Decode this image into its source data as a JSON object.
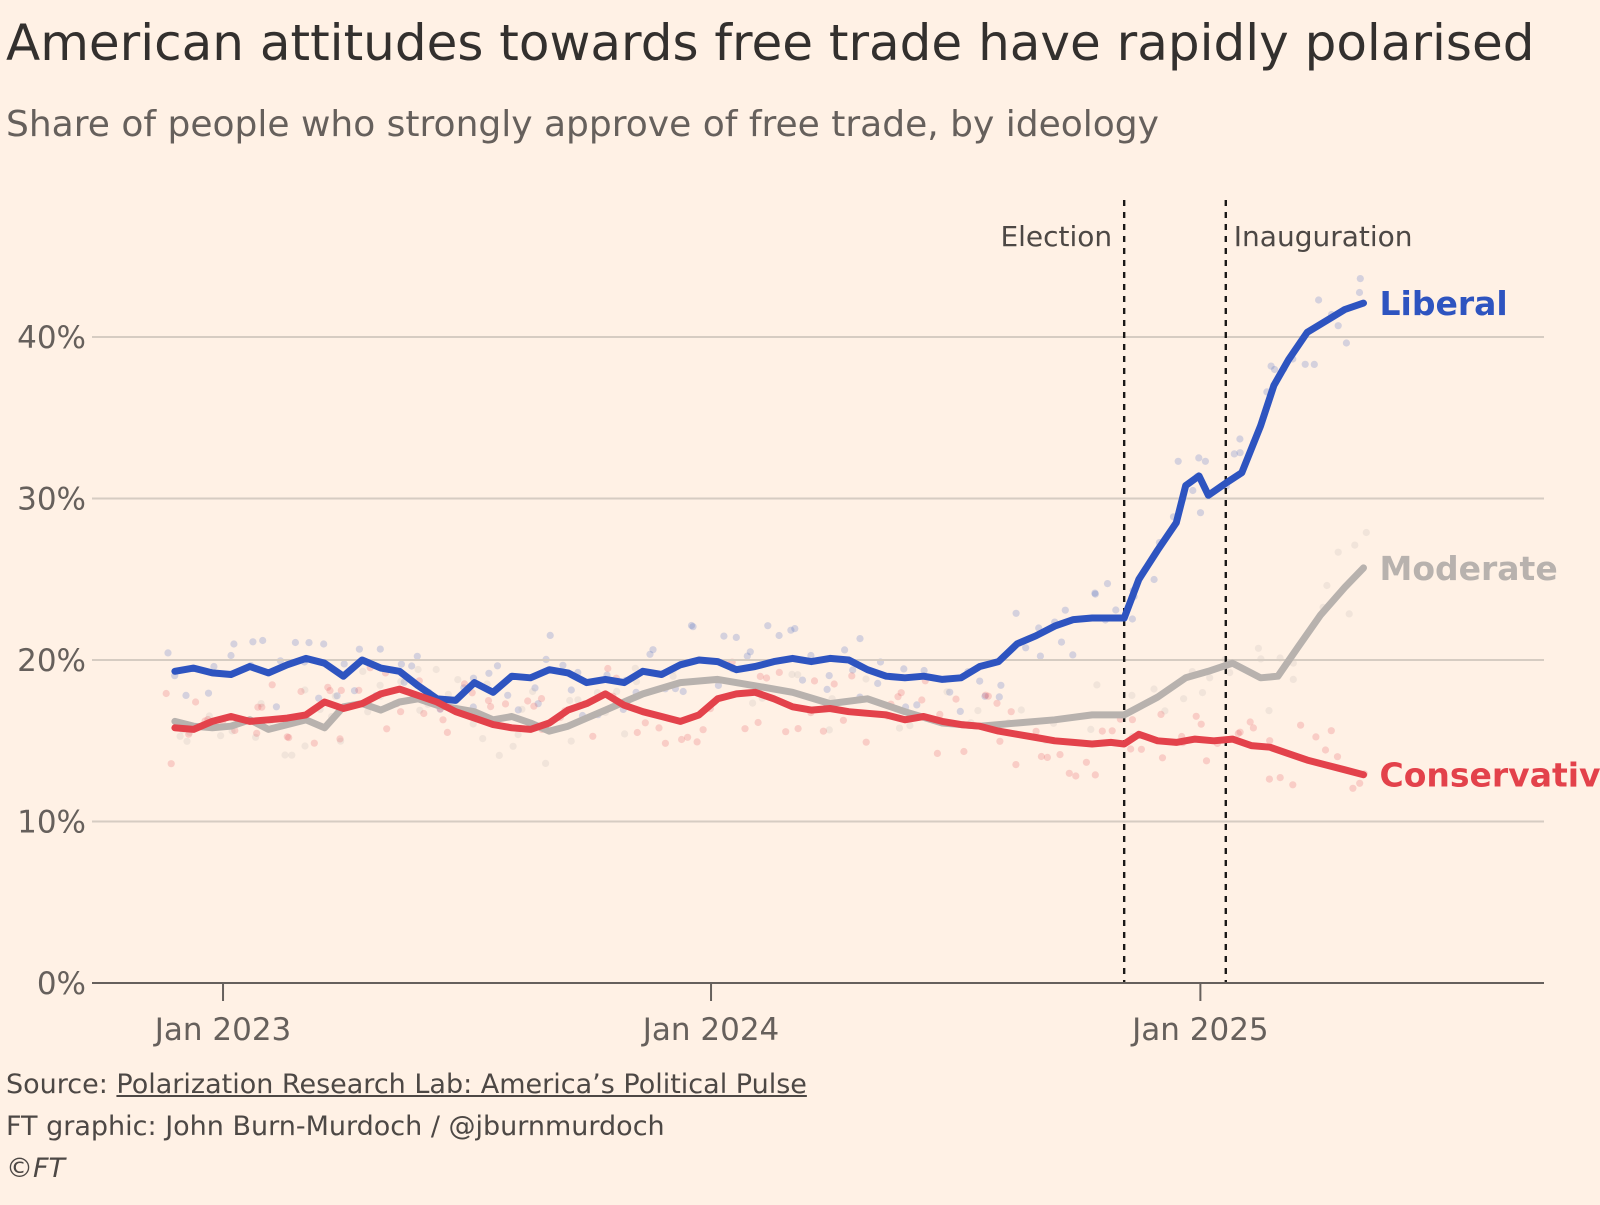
{
  "title": "American attitudes towards free trade have rapidly polarised",
  "subtitle": "Share of people who strongly approve of free trade, by ideology",
  "footer": {
    "source_prefix": "Source: ",
    "source_link": "Polarization Research Lab: America’s Political Pulse",
    "credit": "FT graphic: John Burn-Murdoch / @jburnmurdoch",
    "copyright": "©FT"
  },
  "colors": {
    "background": "#FFF1E5",
    "liberal": "#2E54C0",
    "moderate": "#B8B2AE",
    "conservative": "#E3424B",
    "grid": "#D6CCC2",
    "axis": "#66605C"
  },
  "chart_data": {
    "type": "line",
    "title": "American attitudes towards free trade have rapidly polarised",
    "subtitle": "Share of people who strongly approve of free trade, by ideology",
    "xlabel": "",
    "ylabel": "",
    "xlim": [
      "2022-09-25",
      "2025-09-15"
    ],
    "ylim": [
      0,
      40
    ],
    "y_ticks": [
      0,
      10,
      20,
      30,
      40
    ],
    "y_tick_labels": [
      "0%",
      "10%",
      "20%",
      "30%",
      "40%"
    ],
    "x_ticks": [
      "2023-01-01",
      "2024-01-01",
      "2025-01-01"
    ],
    "x_tick_labels": [
      "Jan 2023",
      "Jan 2024",
      "Jan 2025"
    ],
    "grid": true,
    "legend": "direct labels at line ends",
    "events": [
      {
        "label": "Election",
        "date": "2024-11-05"
      },
      {
        "label": "Inauguration",
        "date": "2025-01-20"
      }
    ],
    "series": [
      {
        "name": "Liberal",
        "color": "#2E54C0",
        "points": [
          [
            "2022-11-26",
            19.3
          ],
          [
            "2022-12-10",
            19.5
          ],
          [
            "2022-12-24",
            19.2
          ],
          [
            "2023-01-07",
            19.1
          ],
          [
            "2023-01-21",
            19.6
          ],
          [
            "2023-02-04",
            19.2
          ],
          [
            "2023-02-18",
            19.7
          ],
          [
            "2023-03-04",
            20.1
          ],
          [
            "2023-03-18",
            19.8
          ],
          [
            "2023-04-01",
            19.0
          ],
          [
            "2023-04-15",
            20.0
          ],
          [
            "2023-04-29",
            19.5
          ],
          [
            "2023-05-13",
            19.3
          ],
          [
            "2023-05-27",
            18.4
          ],
          [
            "2023-06-10",
            17.6
          ],
          [
            "2023-06-24",
            17.5
          ],
          [
            "2023-07-08",
            18.6
          ],
          [
            "2023-07-22",
            18.0
          ],
          [
            "2023-08-05",
            19.0
          ],
          [
            "2023-08-19",
            18.9
          ],
          [
            "2023-09-02",
            19.4
          ],
          [
            "2023-09-16",
            19.2
          ],
          [
            "2023-09-30",
            18.6
          ],
          [
            "2023-10-14",
            18.8
          ],
          [
            "2023-10-28",
            18.6
          ],
          [
            "2023-11-11",
            19.3
          ],
          [
            "2023-11-25",
            19.1
          ],
          [
            "2023-12-09",
            19.7
          ],
          [
            "2023-12-23",
            20.0
          ],
          [
            "2024-01-06",
            19.9
          ],
          [
            "2024-01-20",
            19.4
          ],
          [
            "2024-02-03",
            19.6
          ],
          [
            "2024-02-17",
            19.9
          ],
          [
            "2024-03-02",
            20.1
          ],
          [
            "2024-03-16",
            19.9
          ],
          [
            "2024-03-30",
            20.1
          ],
          [
            "2024-04-13",
            20.0
          ],
          [
            "2024-04-27",
            19.4
          ],
          [
            "2024-05-11",
            19.0
          ],
          [
            "2024-05-25",
            18.9
          ],
          [
            "2024-06-08",
            19.0
          ],
          [
            "2024-06-22",
            18.8
          ],
          [
            "2024-07-06",
            18.9
          ],
          [
            "2024-07-20",
            19.6
          ],
          [
            "2024-08-03",
            19.9
          ],
          [
            "2024-08-17",
            21.0
          ],
          [
            "2024-08-31",
            21.5
          ],
          [
            "2024-09-14",
            22.1
          ],
          [
            "2024-09-28",
            22.5
          ],
          [
            "2024-10-12",
            22.6
          ],
          [
            "2024-10-26",
            22.6
          ],
          [
            "2024-11-05",
            22.6
          ],
          [
            "2024-11-16",
            25.0
          ],
          [
            "2024-11-30",
            26.8
          ],
          [
            "2024-12-14",
            28.5
          ],
          [
            "2024-12-21",
            30.8
          ],
          [
            "2024-12-31",
            31.4
          ],
          [
            "2025-01-07",
            30.2
          ],
          [
            "2025-01-21",
            31.0
          ],
          [
            "2025-02-01",
            31.6
          ],
          [
            "2025-02-15",
            34.5
          ],
          [
            "2025-02-25",
            37.0
          ],
          [
            "2025-03-08",
            38.6
          ],
          [
            "2025-03-22",
            40.3
          ],
          [
            "2025-04-05",
            41.0
          ],
          [
            "2025-04-19",
            41.7
          ],
          [
            "2025-05-03",
            42.1
          ]
        ]
      },
      {
        "name": "Moderate",
        "color": "#B8B2AE",
        "points": [
          [
            "2022-11-26",
            16.2
          ],
          [
            "2022-12-10",
            15.9
          ],
          [
            "2022-12-24",
            15.8
          ],
          [
            "2023-01-07",
            15.9
          ],
          [
            "2023-01-21",
            16.3
          ],
          [
            "2023-02-04",
            15.7
          ],
          [
            "2023-02-18",
            16.0
          ],
          [
            "2023-03-04",
            16.3
          ],
          [
            "2023-03-18",
            15.8
          ],
          [
            "2023-04-01",
            17.1
          ],
          [
            "2023-04-15",
            17.3
          ],
          [
            "2023-04-29",
            16.9
          ],
          [
            "2023-05-13",
            17.4
          ],
          [
            "2023-05-27",
            17.6
          ],
          [
            "2023-06-10",
            17.2
          ],
          [
            "2023-06-24",
            17.0
          ],
          [
            "2023-07-08",
            16.8
          ],
          [
            "2023-07-22",
            16.3
          ],
          [
            "2023-08-05",
            16.5
          ],
          [
            "2023-08-19",
            16.1
          ],
          [
            "2023-09-02",
            15.6
          ],
          [
            "2023-09-16",
            15.9
          ],
          [
            "2023-09-30",
            16.4
          ],
          [
            "2023-10-14",
            16.9
          ],
          [
            "2023-10-28",
            17.4
          ],
          [
            "2023-11-11",
            17.9
          ],
          [
            "2023-12-09",
            18.6
          ],
          [
            "2024-01-06",
            18.8
          ],
          [
            "2024-02-03",
            18.4
          ],
          [
            "2024-03-02",
            18.0
          ],
          [
            "2024-03-30",
            17.3
          ],
          [
            "2024-04-27",
            17.6
          ],
          [
            "2024-05-25",
            16.8
          ],
          [
            "2024-06-22",
            16.1
          ],
          [
            "2024-07-20",
            15.9
          ],
          [
            "2024-08-17",
            16.1
          ],
          [
            "2024-09-14",
            16.3
          ],
          [
            "2024-10-12",
            16.6
          ],
          [
            "2024-11-05",
            16.6
          ],
          [
            "2024-11-30",
            17.7
          ],
          [
            "2024-12-21",
            18.9
          ],
          [
            "2025-01-07",
            19.3
          ],
          [
            "2025-01-25",
            19.8
          ],
          [
            "2025-02-15",
            18.9
          ],
          [
            "2025-02-28",
            19.0
          ],
          [
            "2025-03-15",
            20.8
          ],
          [
            "2025-04-01",
            22.8
          ],
          [
            "2025-04-19",
            24.5
          ],
          [
            "2025-05-03",
            25.7
          ]
        ]
      },
      {
        "name": "Conservative",
        "color": "#E3424B",
        "points": [
          [
            "2022-11-26",
            15.8
          ],
          [
            "2022-12-10",
            15.7
          ],
          [
            "2022-12-24",
            16.2
          ],
          [
            "2023-01-07",
            16.5
          ],
          [
            "2023-01-21",
            16.2
          ],
          [
            "2023-02-04",
            16.3
          ],
          [
            "2023-02-18",
            16.4
          ],
          [
            "2023-03-04",
            16.6
          ],
          [
            "2023-03-18",
            17.4
          ],
          [
            "2023-04-01",
            17.0
          ],
          [
            "2023-04-15",
            17.3
          ],
          [
            "2023-04-29",
            17.9
          ],
          [
            "2023-05-13",
            18.2
          ],
          [
            "2023-05-27",
            17.8
          ],
          [
            "2023-06-10",
            17.4
          ],
          [
            "2023-06-24",
            16.8
          ],
          [
            "2023-07-08",
            16.4
          ],
          [
            "2023-07-22",
            16.0
          ],
          [
            "2023-08-05",
            15.8
          ],
          [
            "2023-08-19",
            15.7
          ],
          [
            "2023-09-02",
            16.1
          ],
          [
            "2023-09-16",
            16.9
          ],
          [
            "2023-09-30",
            17.3
          ],
          [
            "2023-10-14",
            17.9
          ],
          [
            "2023-10-28",
            17.2
          ],
          [
            "2023-11-11",
            16.8
          ],
          [
            "2023-11-25",
            16.5
          ],
          [
            "2023-12-09",
            16.2
          ],
          [
            "2023-12-23",
            16.6
          ],
          [
            "2024-01-06",
            17.6
          ],
          [
            "2024-01-20",
            17.9
          ],
          [
            "2024-02-03",
            18.0
          ],
          [
            "2024-02-17",
            17.6
          ],
          [
            "2024-03-02",
            17.1
          ],
          [
            "2024-03-16",
            16.9
          ],
          [
            "2024-03-30",
            17.0
          ],
          [
            "2024-04-13",
            16.8
          ],
          [
            "2024-04-27",
            16.7
          ],
          [
            "2024-05-11",
            16.6
          ],
          [
            "2024-05-25",
            16.3
          ],
          [
            "2024-06-08",
            16.5
          ],
          [
            "2024-06-22",
            16.2
          ],
          [
            "2024-07-06",
            16.0
          ],
          [
            "2024-07-20",
            15.9
          ],
          [
            "2024-08-03",
            15.6
          ],
          [
            "2024-08-17",
            15.4
          ],
          [
            "2024-08-31",
            15.2
          ],
          [
            "2024-09-14",
            15.0
          ],
          [
            "2024-09-28",
            14.9
          ],
          [
            "2024-10-12",
            14.8
          ],
          [
            "2024-10-26",
            14.9
          ],
          [
            "2024-11-05",
            14.8
          ],
          [
            "2024-11-16",
            15.4
          ],
          [
            "2024-11-30",
            15.0
          ],
          [
            "2024-12-14",
            14.9
          ],
          [
            "2024-12-28",
            15.1
          ],
          [
            "2025-01-11",
            15.0
          ],
          [
            "2025-01-25",
            15.1
          ],
          [
            "2025-02-08",
            14.7
          ],
          [
            "2025-02-22",
            14.6
          ],
          [
            "2025-03-08",
            14.2
          ],
          [
            "2025-03-22",
            13.8
          ],
          [
            "2025-04-05",
            13.5
          ],
          [
            "2025-04-19",
            13.2
          ],
          [
            "2025-05-03",
            12.9
          ]
        ]
      }
    ]
  }
}
